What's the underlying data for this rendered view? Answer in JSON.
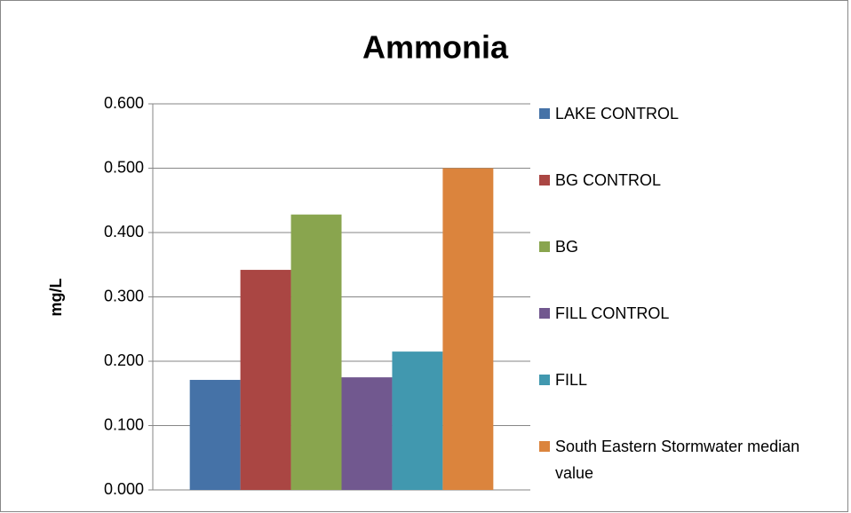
{
  "chart_data": {
    "type": "bar",
    "title": "Ammonia",
    "y_label": "mg/L",
    "categories": [
      null
    ],
    "series": [
      {
        "name": "LAKE CONTROL",
        "color": "#4572a7",
        "values": [
          0.171
        ]
      },
      {
        "name": "BG CONTROL",
        "color": "#aa4643",
        "values": [
          0.342
        ]
      },
      {
        "name": "BG",
        "color": "#89a54e",
        "values": [
          0.428
        ]
      },
      {
        "name": "FILL CONTROL",
        "color": "#71588f",
        "values": [
          0.175
        ]
      },
      {
        "name": "FILL",
        "color": "#4198af",
        "values": [
          0.215
        ]
      },
      {
        "name": "South Eastern Stormwater median value",
        "color": "#db843d",
        "values": [
          0.5
        ]
      }
    ],
    "ylim": [
      0,
      0.6
    ],
    "yticks": [
      {
        "value": 0,
        "label": "0.000"
      },
      {
        "value": 0.1,
        "label": "0.100"
      },
      {
        "value": 0.2,
        "label": "0.200"
      },
      {
        "value": 0.3,
        "label": "0.300"
      },
      {
        "value": 0.4,
        "label": "0.400"
      },
      {
        "value": 0.5,
        "label": "0.500"
      },
      {
        "value": 0.6,
        "label": "0.600"
      }
    ],
    "grid": true,
    "legend": "right"
  }
}
